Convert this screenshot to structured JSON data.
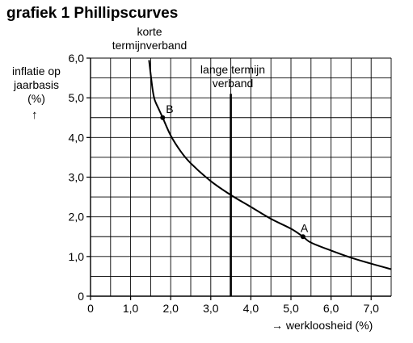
{
  "title": "grafiek 1  Phillipscurves",
  "chart_data": {
    "type": "line",
    "ylabel_lines": [
      "inflatie op",
      "jaarbasis",
      "(%)"
    ],
    "ylabel_arrow": "↑",
    "xlabel": "→ werkloosheid (%)",
    "x_ticks": [
      "0",
      "1,0",
      "2,0",
      "3,0",
      "4,0",
      "5,0",
      "6,0",
      "7,0"
    ],
    "y_ticks": [
      "0",
      "1,0",
      "2,0",
      "3,0",
      "4,0",
      "5,0",
      "6,0"
    ],
    "xlim": [
      0,
      7.5
    ],
    "ylim": [
      0,
      6
    ],
    "grid": true,
    "grid_minor_step": 0.5,
    "series": [
      {
        "name": "korte termijnverband",
        "name_lines": [
          "korte",
          "termijnverband"
        ],
        "x": [
          1.5,
          1.55,
          1.6,
          1.7,
          1.8,
          2.0,
          2.25,
          2.5,
          3.0,
          3.5,
          4.0,
          4.5,
          5.0,
          5.3,
          5.5,
          6.0,
          6.5,
          7.0,
          7.5
        ],
        "y": [
          5.6,
          5.2,
          4.95,
          4.72,
          4.5,
          4.05,
          3.65,
          3.35,
          2.9,
          2.55,
          2.25,
          1.95,
          1.7,
          1.5,
          1.35,
          1.15,
          0.97,
          0.82,
          0.68
        ]
      }
    ],
    "vertical_lines": [
      {
        "name_lines": [
          "lange termijn",
          "verband"
        ],
        "x": 3.5
      }
    ],
    "points": [
      {
        "label": "B",
        "x": 1.8,
        "y": 4.5
      },
      {
        "label": "A",
        "x": 5.3,
        "y": 1.5
      }
    ],
    "colors": {
      "line": "#000000",
      "grid": "#000000"
    }
  }
}
